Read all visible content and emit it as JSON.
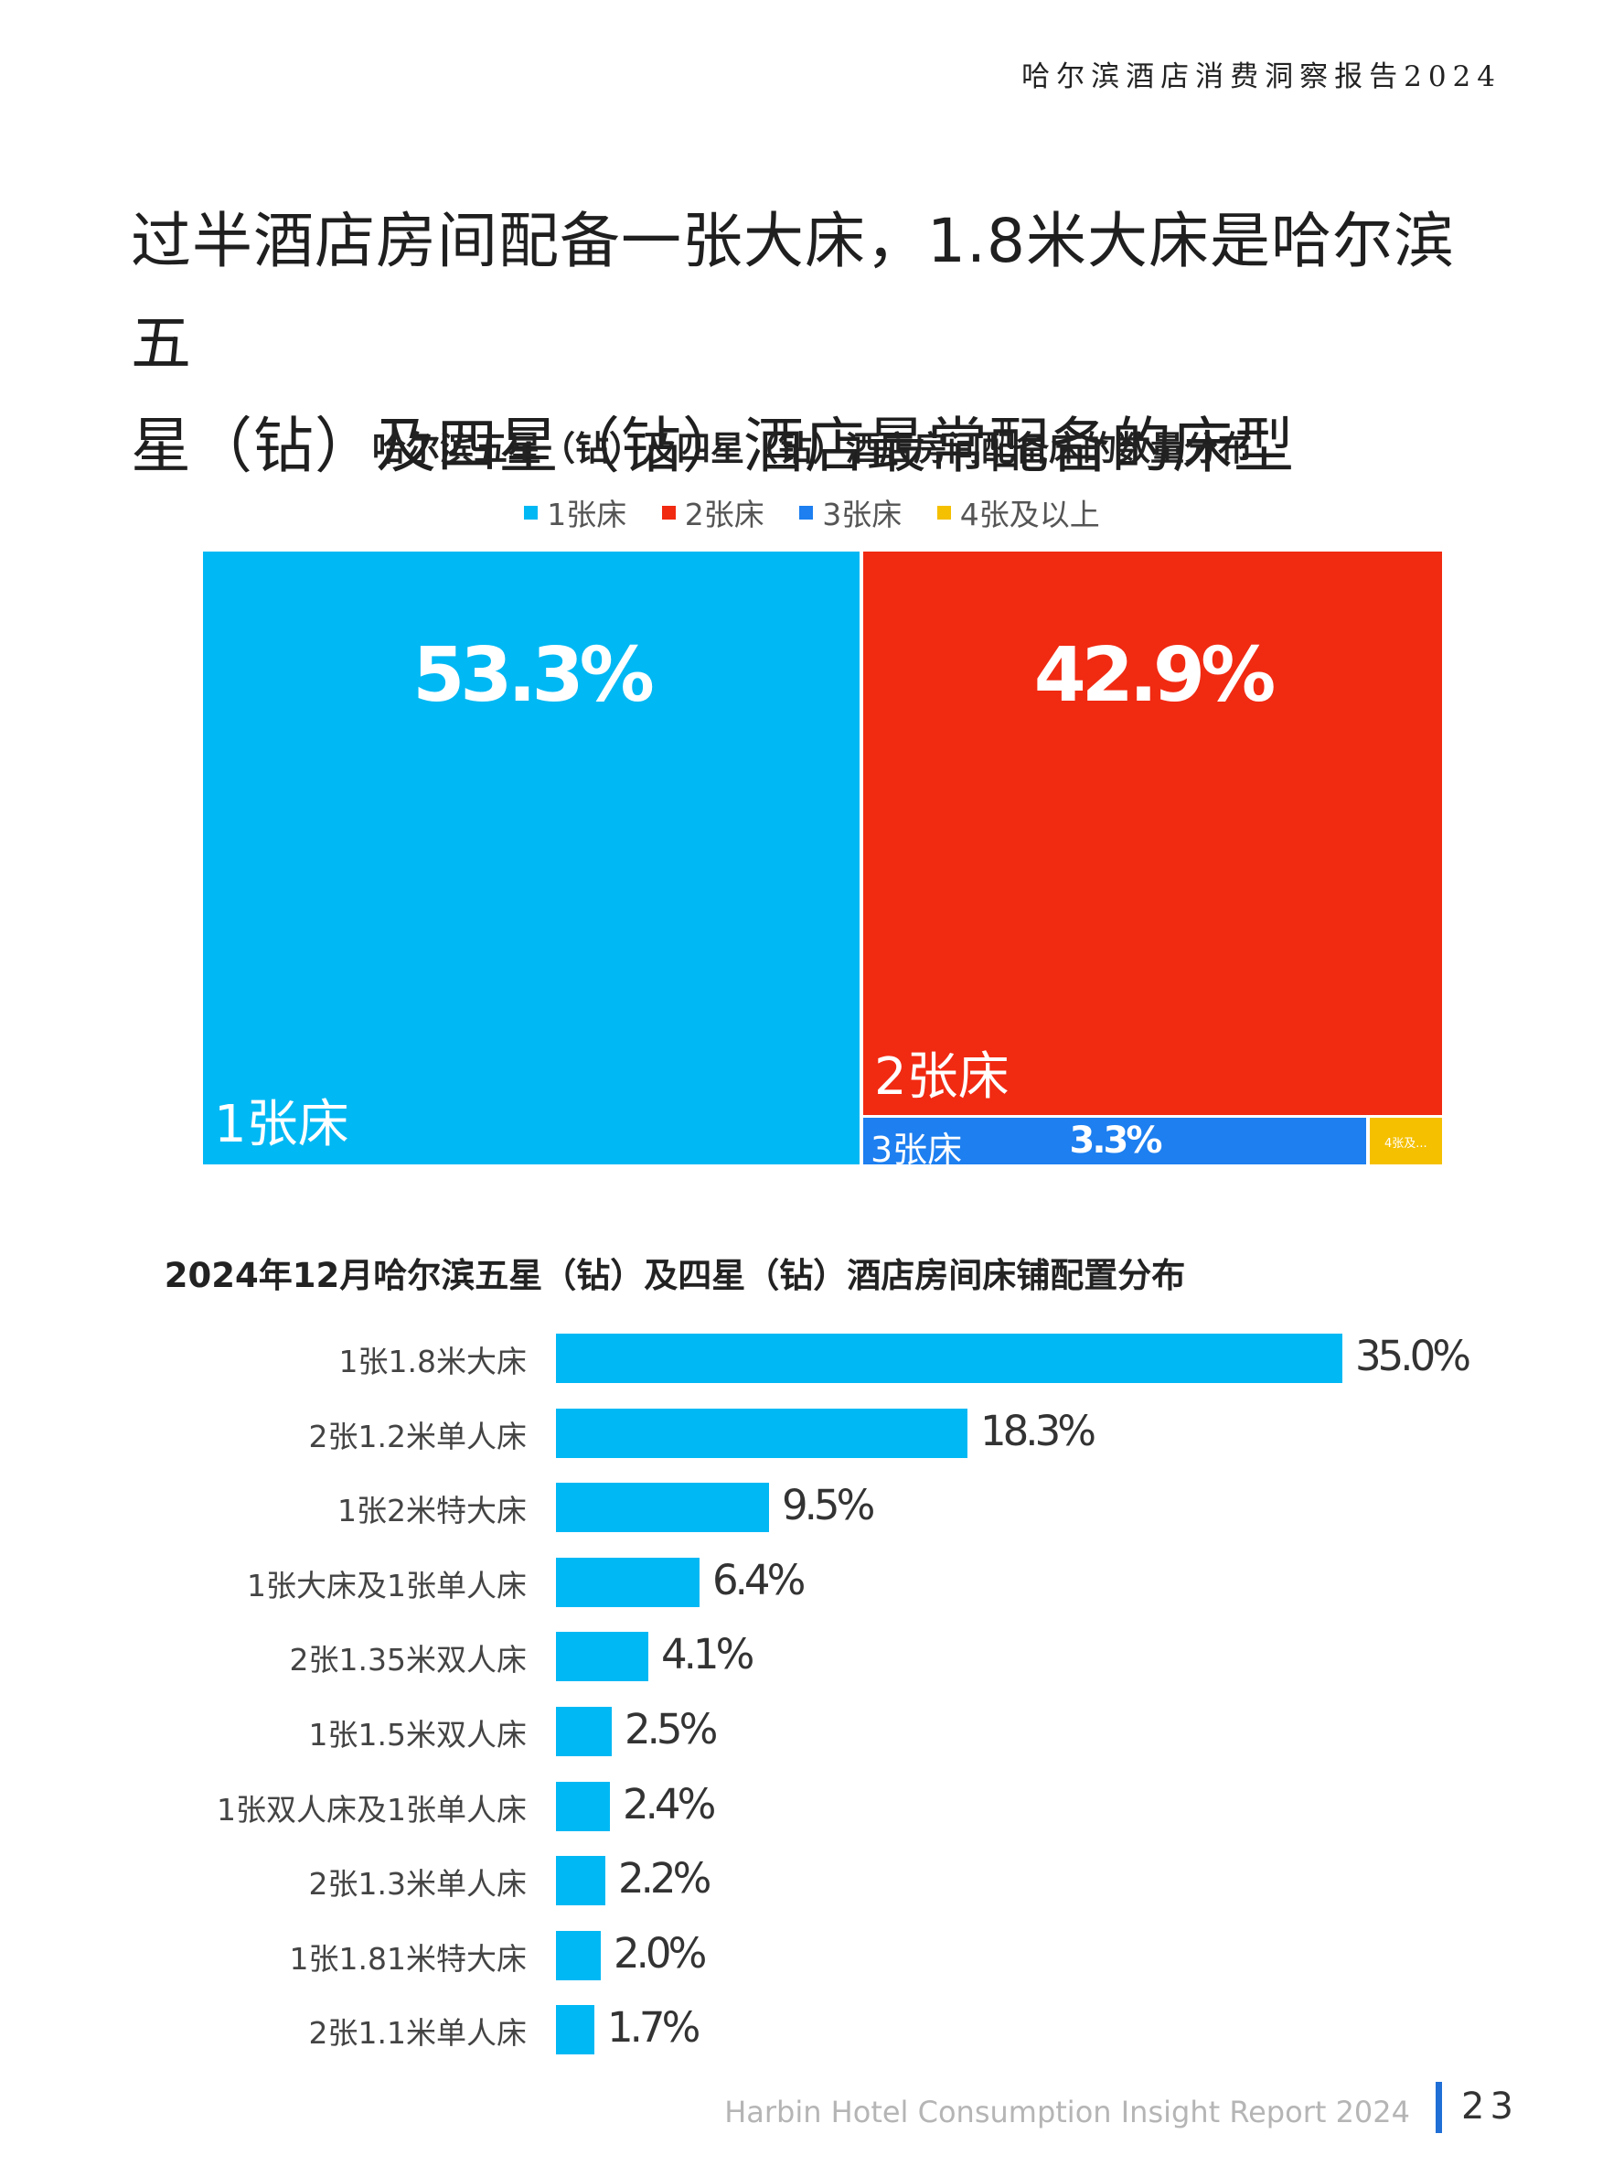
{
  "header": {
    "report_title": "哈尔滨酒店消费洞察报告2024"
  },
  "page": {
    "title_line1": "过半酒店房间配备一张大床，1.8米大床是哈尔滨五",
    "title_line2": "星（钻）及四星（钻）酒店最常配备的床型"
  },
  "chart_data": [
    {
      "type": "treemap",
      "title": "哈尔滨五星（钻）及四星（钻）酒店房间配备床的数量分布",
      "legend": [
        {
          "label": "1张床",
          "color": "#00b8f4"
        },
        {
          "label": "2张床",
          "color": "#f12a12"
        },
        {
          "label": "3张床",
          "color": "#1d7ff0"
        },
        {
          "label": "4张及以上",
          "color": "#f5c000"
        }
      ],
      "items": [
        {
          "name": "1张床",
          "value": 53.3,
          "value_label": "53.3%",
          "tile_label": "1张床",
          "color": "#00b8f4"
        },
        {
          "name": "2张床",
          "value": 42.9,
          "value_label": "42.9%",
          "tile_label": "2张床",
          "color": "#f12a12"
        },
        {
          "name": "3张床",
          "value": 3.3,
          "value_label": "3.3%",
          "tile_label": "3张床",
          "color": "#1d7ff0"
        },
        {
          "name": "4张及以上",
          "value": 0.5,
          "value_label": "",
          "tile_label": "4张及...",
          "color": "#f5c000"
        }
      ]
    },
    {
      "type": "bar",
      "orientation": "horizontal",
      "title": "2024年12月哈尔滨五星（钻）及四星（钻）酒店房间床铺配置分布",
      "categories": [
        "1张1.8米大床",
        "2张1.2米单人床",
        "1张2米特大床",
        "1张大床及1张单人床",
        "2张1.35米双人床",
        "1张1.5米双人床",
        "1张双人床及1张单人床",
        "2张1.3米单人床",
        "1张1.81米特大床",
        "2张1.1米单人床"
      ],
      "values": [
        35.0,
        18.3,
        9.5,
        6.4,
        4.1,
        2.5,
        2.4,
        2.2,
        2.0,
        1.7
      ],
      "value_labels": [
        "35.0%",
        "18.3%",
        "9.5%",
        "6.4%",
        "4.1%",
        "2.5%",
        "2.4%",
        "2.2%",
        "2.0%",
        "1.7%"
      ],
      "color": "#00b8f4",
      "xlim": [
        0,
        35
      ]
    }
  ],
  "footer": {
    "report_name": "Harbin Hotel Consumption Insight Report 2024",
    "page_number": "23"
  }
}
